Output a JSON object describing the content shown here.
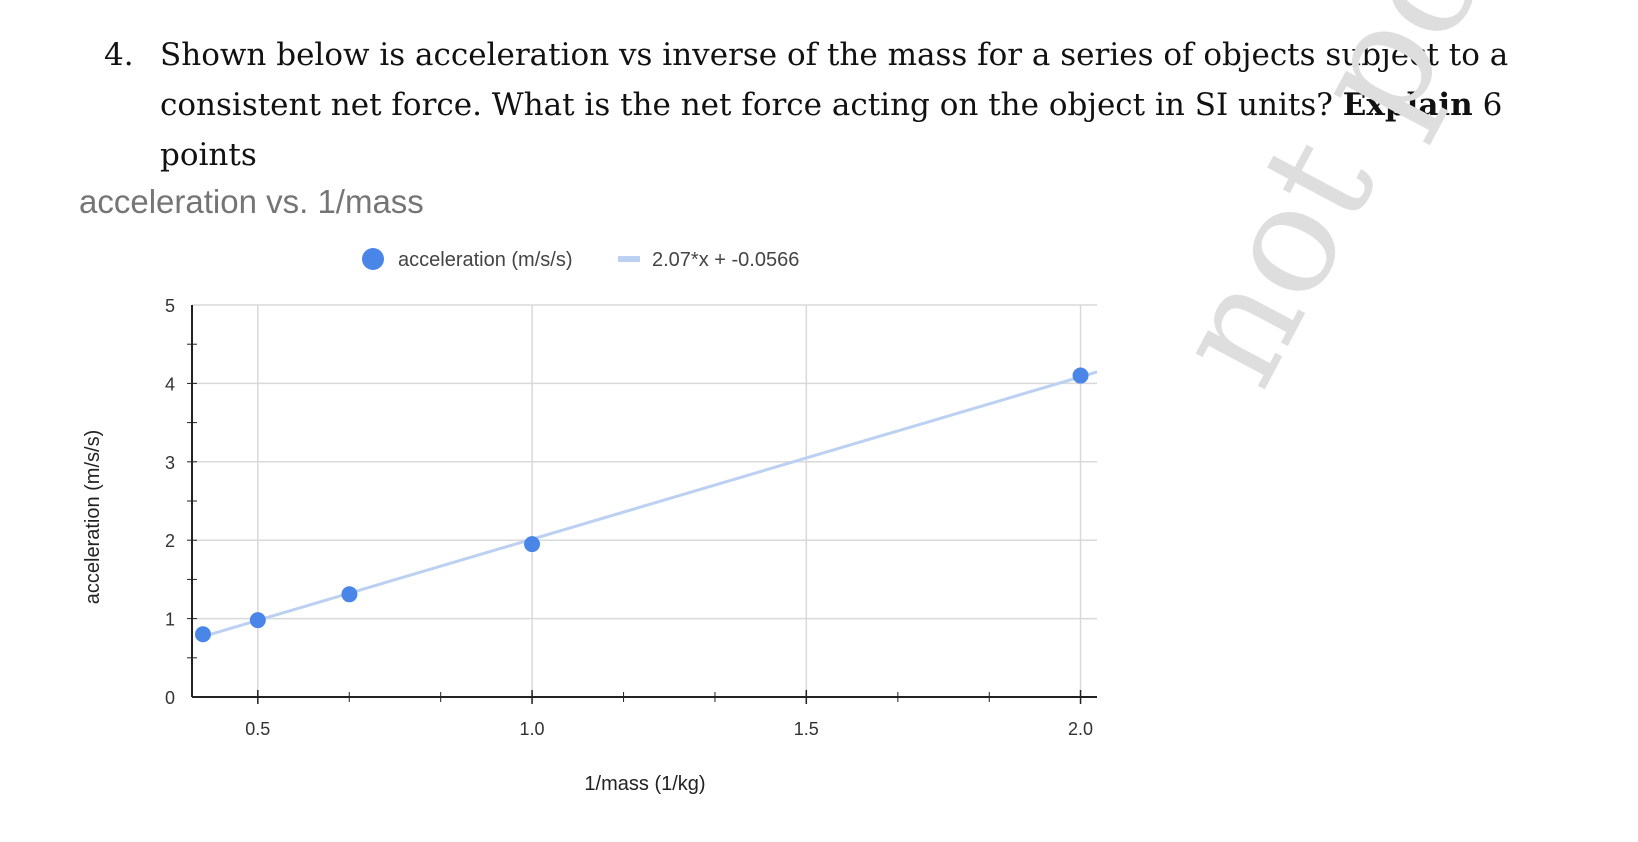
{
  "question": {
    "number": "4.",
    "text": "Shown below is acceleration vs inverse of the mass for a series of objects subject to a consistent net force. What is the net force acting on the object in SI units?",
    "emphasis": "Explain",
    "points": "6 points"
  },
  "watermark": "not post",
  "chart_data": {
    "type": "scatter",
    "title": "acceleration vs. 1/mass",
    "xlabel": "1/mass (1/kg)",
    "ylabel": "acceleration (m/s/s)",
    "xlim": [
      0.38,
      2.03
    ],
    "ylim": [
      0,
      5
    ],
    "x_ticks": [
      "0.5",
      "1.0",
      "1.5",
      "2.0"
    ],
    "y_ticks": [
      "0",
      "1",
      "2",
      "3",
      "4",
      "5"
    ],
    "grid": true,
    "legend_position": "top",
    "series": [
      {
        "name": "acceleration (m/s/s)",
        "color": "#4a86e8",
        "x": [
          0.4,
          0.5,
          0.667,
          1.0,
          2.0
        ],
        "y": [
          0.8,
          0.98,
          1.31,
          1.95,
          4.1
        ]
      }
    ],
    "trendline": {
      "name": "2.07*x + -0.0566",
      "slope": 2.07,
      "intercept": -0.0566,
      "color": "#bcd0f2"
    }
  }
}
